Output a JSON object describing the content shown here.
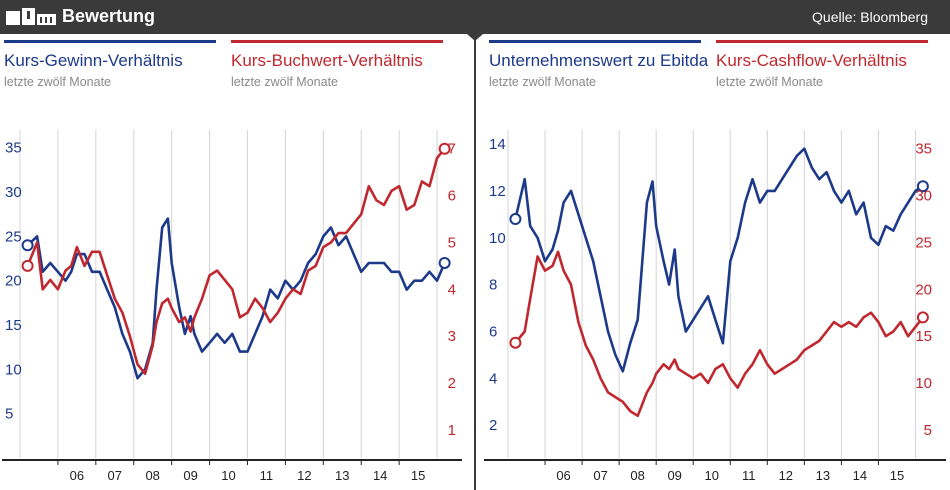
{
  "header": {
    "title": "Bewertung",
    "source": "Quelle: Bloomberg"
  },
  "colors": {
    "blue": "#1d3a8a",
    "red": "#c0282f",
    "header_bg": "#3a3a3a",
    "grid": "#d4d4d4"
  },
  "chart_data": [
    {
      "type": "line",
      "x_ticks": [
        "06",
        "07",
        "08",
        "09",
        "10",
        "11",
        "12",
        "13",
        "14",
        "15"
      ],
      "x_range": [
        2005.0,
        2016.5
      ],
      "grid": "vertical",
      "series": [
        {
          "name": "Kurs-Gewinn-Verhältnis",
          "subtitle": "letzte zwölf Monate",
          "color": "blue",
          "axis": "left",
          "y_range": [
            0,
            37
          ],
          "y_ticks": [
            5,
            10,
            15,
            20,
            25,
            30,
            35
          ],
          "x": [
            2005.2,
            2005.45,
            2005.6,
            2005.8,
            2006.0,
            2006.2,
            2006.35,
            2006.5,
            2006.7,
            2006.9,
            2007.1,
            2007.3,
            2007.5,
            2007.7,
            2007.9,
            2008.1,
            2008.3,
            2008.5,
            2008.6,
            2008.75,
            2008.9,
            2009.0,
            2009.2,
            2009.35,
            2009.5,
            2009.6,
            2009.8,
            2010.0,
            2010.2,
            2010.4,
            2010.6,
            2010.8,
            2011.0,
            2011.2,
            2011.4,
            2011.6,
            2011.8,
            2012.0,
            2012.2,
            2012.4,
            2012.6,
            2012.8,
            2013.0,
            2013.2,
            2013.4,
            2013.6,
            2013.8,
            2014.0,
            2014.2,
            2014.4,
            2014.6,
            2014.8,
            2015.0,
            2015.2,
            2015.4,
            2015.6,
            2015.8,
            2016.0,
            2016.2
          ],
          "y": [
            24,
            25,
            21,
            22,
            21,
            20,
            21,
            23,
            23,
            21,
            21,
            19,
            17,
            14,
            12,
            9,
            10,
            13,
            19,
            26,
            27,
            22,
            17,
            14,
            16,
            14,
            12,
            13,
            14,
            13,
            14,
            12,
            12,
            14,
            16,
            19,
            18,
            20,
            19,
            20,
            22,
            23,
            25,
            26,
            24,
            25,
            23,
            21,
            22,
            22,
            22,
            21,
            21,
            19,
            20,
            20,
            21,
            20,
            22
          ]
        },
        {
          "name": "Kurs-Buchwert-Verhältnis",
          "subtitle": "letzte zwölf Monate",
          "color": "red",
          "axis": "right",
          "y_range": [
            0.4,
            7.4
          ],
          "y_ticks": [
            1,
            2,
            3,
            4,
            5,
            6,
            7
          ],
          "x": [
            2005.2,
            2005.45,
            2005.6,
            2005.8,
            2006.0,
            2006.2,
            2006.35,
            2006.5,
            2006.7,
            2006.9,
            2007.1,
            2007.3,
            2007.5,
            2007.7,
            2007.9,
            2008.1,
            2008.3,
            2008.5,
            2008.6,
            2008.75,
            2008.9,
            2009.0,
            2009.2,
            2009.35,
            2009.5,
            2009.6,
            2009.8,
            2010.0,
            2010.2,
            2010.4,
            2010.6,
            2010.8,
            2011.0,
            2011.2,
            2011.4,
            2011.6,
            2011.8,
            2012.0,
            2012.2,
            2012.4,
            2012.6,
            2012.8,
            2013.0,
            2013.2,
            2013.4,
            2013.6,
            2013.8,
            2014.0,
            2014.2,
            2014.4,
            2014.6,
            2014.8,
            2015.0,
            2015.2,
            2015.4,
            2015.6,
            2015.8,
            2016.0,
            2016.2
          ],
          "y": [
            4.5,
            5.0,
            4.0,
            4.2,
            4.0,
            4.4,
            4.5,
            4.9,
            4.5,
            4.8,
            4.8,
            4.3,
            3.8,
            3.5,
            3.0,
            2.4,
            2.2,
            2.8,
            3.3,
            3.7,
            3.8,
            3.6,
            3.3,
            3.4,
            3.1,
            3.4,
            3.8,
            4.3,
            4.4,
            4.2,
            4.0,
            3.4,
            3.5,
            3.8,
            3.6,
            3.3,
            3.5,
            3.8,
            4.0,
            3.9,
            4.4,
            4.5,
            4.9,
            5.0,
            5.2,
            5.2,
            5.4,
            5.6,
            6.2,
            5.9,
            5.8,
            6.1,
            6.2,
            5.7,
            5.8,
            6.3,
            6.2,
            6.8,
            7.0
          ]
        }
      ]
    },
    {
      "type": "line",
      "x_ticks": [
        "06",
        "07",
        "08",
        "09",
        "10",
        "11",
        "12",
        "13",
        "14",
        "15"
      ],
      "x_range": [
        2005.0,
        2016.5
      ],
      "grid": "vertical",
      "series": [
        {
          "name": "Unternehmenswert zu Ebitda",
          "subtitle": "letzte zwölf Monate",
          "color": "blue",
          "axis": "left",
          "y_range": [
            0.6,
            14.6
          ],
          "y_ticks": [
            2,
            4,
            6,
            8,
            10,
            12,
            14
          ],
          "x": [
            2005.2,
            2005.45,
            2005.6,
            2005.8,
            2006.0,
            2006.2,
            2006.35,
            2006.5,
            2006.7,
            2006.9,
            2007.1,
            2007.3,
            2007.5,
            2007.7,
            2007.9,
            2008.1,
            2008.3,
            2008.5,
            2008.6,
            2008.75,
            2008.9,
            2009.0,
            2009.2,
            2009.35,
            2009.5,
            2009.6,
            2009.8,
            2010.0,
            2010.2,
            2010.4,
            2010.6,
            2010.8,
            2011.0,
            2011.2,
            2011.4,
            2011.6,
            2011.8,
            2012.0,
            2012.2,
            2012.4,
            2012.6,
            2012.8,
            2013.0,
            2013.2,
            2013.4,
            2013.6,
            2013.8,
            2014.0,
            2014.2,
            2014.4,
            2014.6,
            2014.8,
            2015.0,
            2015.2,
            2015.4,
            2015.6,
            2015.8,
            2016.0,
            2016.2
          ],
          "y": [
            10.8,
            12.5,
            10.5,
            10.0,
            9.0,
            9.5,
            10.3,
            11.5,
            12.0,
            11.0,
            10.0,
            9.0,
            7.5,
            6.0,
            5.0,
            4.3,
            5.5,
            6.5,
            8.5,
            11.5,
            12.4,
            10.5,
            9.0,
            8.0,
            9.5,
            7.5,
            6.0,
            6.5,
            7.0,
            7.5,
            6.5,
            5.5,
            9.0,
            10.0,
            11.5,
            12.5,
            11.5,
            12.0,
            12.0,
            12.5,
            13.0,
            13.5,
            13.8,
            13.0,
            12.5,
            12.8,
            12.0,
            11.5,
            12.0,
            11.0,
            11.5,
            10.0,
            9.7,
            10.5,
            10.3,
            11.0,
            11.5,
            12.0,
            12.2
          ]
        },
        {
          "name": "Kurs-Cashflow-Verhältnis",
          "subtitle": "letzte zwölf Monate",
          "color": "red",
          "axis": "right",
          "y_range": [
            2,
            37
          ],
          "y_ticks": [
            5,
            10,
            15,
            20,
            25,
            30,
            35
          ],
          "x": [
            2005.2,
            2005.45,
            2005.6,
            2005.8,
            2006.0,
            2006.2,
            2006.35,
            2006.5,
            2006.7,
            2006.9,
            2007.1,
            2007.3,
            2007.5,
            2007.7,
            2007.9,
            2008.1,
            2008.3,
            2008.5,
            2008.6,
            2008.75,
            2008.9,
            2009.0,
            2009.2,
            2009.35,
            2009.5,
            2009.6,
            2009.8,
            2010.0,
            2010.2,
            2010.4,
            2010.6,
            2010.8,
            2011.0,
            2011.2,
            2011.4,
            2011.6,
            2011.8,
            2012.0,
            2012.2,
            2012.4,
            2012.6,
            2012.8,
            2013.0,
            2013.2,
            2013.4,
            2013.6,
            2013.8,
            2014.0,
            2014.2,
            2014.4,
            2014.6,
            2014.8,
            2015.0,
            2015.2,
            2015.4,
            2015.6,
            2015.8,
            2016.0,
            2016.2
          ],
          "y": [
            14.3,
            15.5,
            19.0,
            23.5,
            22.0,
            22.5,
            24.0,
            22.0,
            20.5,
            16.5,
            14.0,
            12.5,
            10.5,
            9.0,
            8.5,
            8.0,
            7.0,
            6.5,
            7.5,
            9.0,
            10.0,
            11.0,
            12.0,
            11.5,
            12.5,
            11.5,
            11.0,
            10.5,
            11.0,
            10.0,
            11.5,
            12.0,
            10.5,
            9.5,
            11.0,
            12.0,
            13.5,
            12.0,
            11.0,
            11.5,
            12.0,
            12.5,
            13.5,
            14.0,
            14.5,
            15.5,
            16.5,
            16.0,
            16.5,
            16.0,
            17.0,
            17.5,
            16.5,
            15.0,
            15.5,
            16.5,
            15.0,
            16.0,
            17.0
          ]
        }
      ]
    }
  ]
}
